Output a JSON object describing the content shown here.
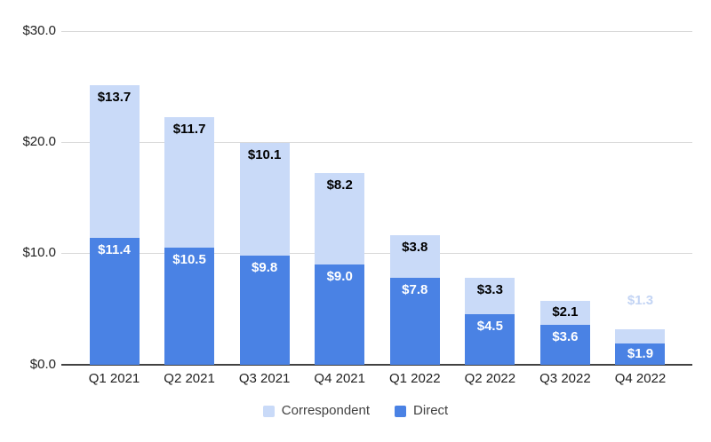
{
  "chart_data": {
    "type": "bar",
    "stacked": true,
    "title": "",
    "categories": [
      "Q1 2021",
      "Q2 2021",
      "Q3 2021",
      "Q4 2021",
      "Q1 2022",
      "Q2 2022",
      "Q3 2022",
      "Q4 2022"
    ],
    "series": [
      {
        "name": "Correspondent",
        "color": "#c9daf8",
        "label_color": "#000000",
        "values": [
          13.7,
          11.7,
          10.1,
          8.2,
          3.8,
          3.3,
          2.1,
          1.3
        ],
        "labels": [
          "$13.7",
          "$11.7",
          "$10.1",
          "$8.2",
          "$3.8",
          "$3.3",
          "$2.1",
          "$1.3"
        ]
      },
      {
        "name": "Direct",
        "color": "#4a82e4",
        "label_color": "#ffffff",
        "values": [
          11.4,
          10.5,
          9.8,
          9.0,
          7.8,
          4.5,
          3.6,
          1.9
        ],
        "labels": [
          "$11.4",
          "$10.5",
          "$9.8",
          "$9.0",
          "$7.8",
          "$4.5",
          "$3.6",
          "$1.9"
        ]
      }
    ],
    "value_prefix": "$",
    "y_axis": {
      "range": [
        0,
        30
      ],
      "ticks": [
        {
          "label": "$0.0",
          "value": 0
        },
        {
          "label": "$10.0",
          "value": 10
        },
        {
          "label": "$20.0",
          "value": 20
        },
        {
          "label": "$30.0",
          "value": 30
        }
      ]
    },
    "grid": true,
    "legend_position": "bottom",
    "outside_label_color": "#c3d4f4"
  }
}
